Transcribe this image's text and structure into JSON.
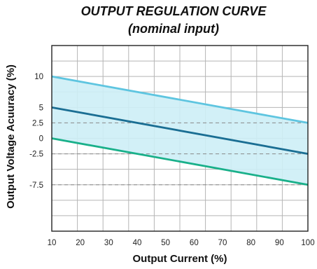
{
  "chart_data": {
    "type": "line",
    "title": "OUTPUT REGULATION CURVE",
    "subtitle": "(nominal input)",
    "xlabel": "Output Current (%)",
    "ylabel": "Output Voltage Acuuracy (%)",
    "xlim": [
      10,
      100
    ],
    "ylim": [
      -15,
      15
    ],
    "x_ticks": [
      "10",
      "20",
      "30",
      "40",
      "50",
      "60",
      "70",
      "80",
      "90",
      "100"
    ],
    "y_ticks": [
      "10",
      "5",
      "2.5",
      "0",
      "-2.5",
      "-7.5"
    ],
    "y_tick_values": [
      10,
      5,
      2.5,
      0,
      -2.5,
      -7.5
    ],
    "dashed_reference_lines": [
      2.5,
      -2.5,
      -7.5
    ],
    "grid": true,
    "shaded_band": {
      "between": [
        "upper",
        "lower"
      ],
      "color": "#cdeef6"
    },
    "series": [
      {
        "key": "upper",
        "x": [
          10,
          100
        ],
        "y": [
          10,
          2.5
        ],
        "color": "#5ec5e0"
      },
      {
        "key": "middle",
        "x": [
          10,
          100
        ],
        "y": [
          5,
          -2.5
        ],
        "color": "#1a6e93"
      },
      {
        "key": "lower",
        "x": [
          10,
          100
        ],
        "y": [
          0,
          -7.5
        ],
        "color": "#19b08a"
      }
    ]
  }
}
